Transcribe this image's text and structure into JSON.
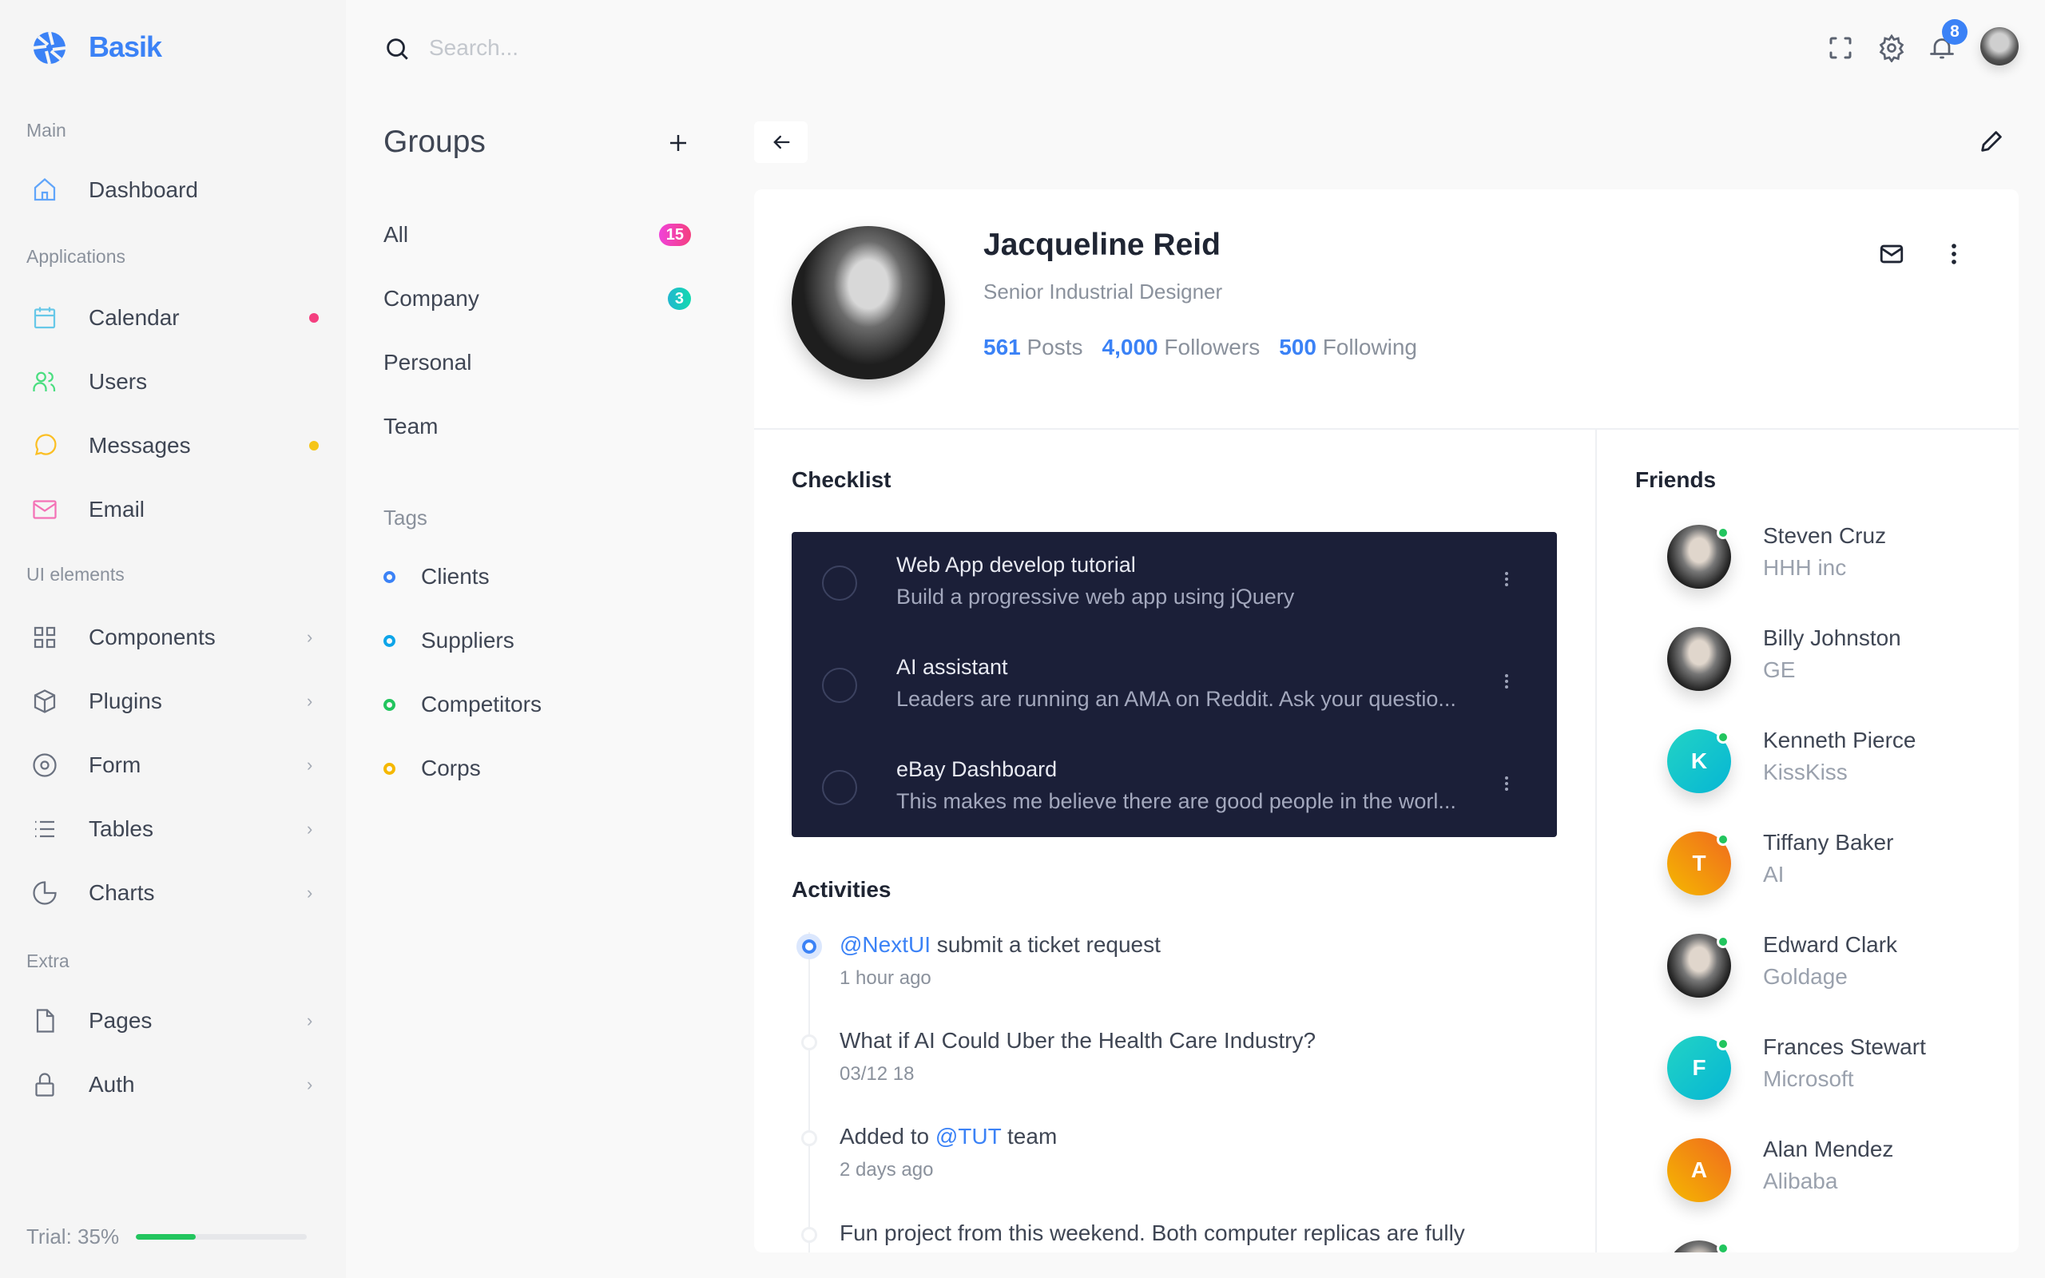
{
  "brand": {
    "name": "Basik",
    "color": "#3b82f6"
  },
  "sidebar": {
    "sections": [
      {
        "label": "Main",
        "items": [
          {
            "label": "Dashboard",
            "icon": "home-icon",
            "color": "#60a5fa"
          }
        ]
      },
      {
        "label": "Applications",
        "items": [
          {
            "label": "Calendar",
            "icon": "calendar-icon",
            "color": "#67c8e8",
            "dot": "#f43f7f"
          },
          {
            "label": "Users",
            "icon": "users-icon",
            "color": "#4ade80"
          },
          {
            "label": "Messages",
            "icon": "message-icon",
            "color": "#fbbf24",
            "dot": "#f5c518"
          },
          {
            "label": "Email",
            "icon": "mail-icon",
            "color": "#f472b6"
          }
        ]
      },
      {
        "label": "UI elements",
        "items": [
          {
            "label": "Components",
            "icon": "grid-icon",
            "chevron": true
          },
          {
            "label": "Plugins",
            "icon": "box-icon",
            "chevron": true
          },
          {
            "label": "Form",
            "icon": "target-icon",
            "chevron": true
          },
          {
            "label": "Tables",
            "icon": "list-icon",
            "chevron": true
          },
          {
            "label": "Charts",
            "icon": "pie-chart-icon",
            "chevron": true
          }
        ]
      },
      {
        "label": "Extra",
        "items": [
          {
            "label": "Pages",
            "icon": "file-icon",
            "chevron": true
          },
          {
            "label": "Auth",
            "icon": "lock-icon",
            "chevron": true
          }
        ]
      }
    ],
    "trial": {
      "label": "Trial: 35%",
      "percent": 35
    }
  },
  "topbar": {
    "search_placeholder": "Search...",
    "notifications": "8"
  },
  "groups": {
    "title": "Groups",
    "items": [
      {
        "label": "All",
        "badge": "15",
        "badge_color": "linear-gradient(90deg,#f043d9,#f43f7f)"
      },
      {
        "label": "Company",
        "badge": "3",
        "badge_color": "linear-gradient(90deg,#22b8cf,#14d9b0)"
      },
      {
        "label": "Personal"
      },
      {
        "label": "Team"
      }
    ],
    "tags_title": "Tags",
    "tags": [
      {
        "label": "Clients",
        "color": "#3b82f6"
      },
      {
        "label": "Suppliers",
        "color": "#0ea5e9"
      },
      {
        "label": "Competitors",
        "color": "#22c55e"
      },
      {
        "label": "Corps",
        "color": "#f5b800"
      }
    ]
  },
  "profile": {
    "name": "Jacqueline Reid",
    "title": "Senior Industrial Designer",
    "posts": "561",
    "posts_label": "Posts",
    "followers": "4,000",
    "followers_label": "Followers",
    "following": "500",
    "following_label": "Following"
  },
  "checklist": {
    "title": "Checklist",
    "items": [
      {
        "title": "Web App develop tutorial",
        "subtitle": "Build a progressive web app using jQuery"
      },
      {
        "title": "AI assistant",
        "subtitle": "Leaders are running an AMA on Reddit. Ask your questio..."
      },
      {
        "title": "eBay Dashboard",
        "subtitle": "This makes me believe there are good people in the worl..."
      }
    ]
  },
  "activities": {
    "title": "Activities",
    "items": [
      {
        "parts": [
          {
            "text": "@NextUI",
            "link": true
          },
          {
            "text": " submit a ticket request"
          }
        ],
        "time": "1 hour ago"
      },
      {
        "parts": [
          {
            "text": "What if AI Could Uber the Health Care Industry?"
          }
        ],
        "time": "03/12 18"
      },
      {
        "parts": [
          {
            "text": "Added to "
          },
          {
            "text": "@TUT",
            "link": true
          },
          {
            "text": " team"
          }
        ],
        "time": "2 days ago"
      },
      {
        "parts": [
          {
            "text": "Fun project from this weekend. Both computer replicas are fully"
          }
        ]
      }
    ]
  },
  "friends": {
    "title": "Friends",
    "items": [
      {
        "name": "Steven Cruz",
        "company": "HHH inc",
        "photo": true,
        "online": true
      },
      {
        "name": "Billy Johnston",
        "company": "GE",
        "photo": true,
        "online": false
      },
      {
        "name": "Kenneth Pierce",
        "company": "KissKiss",
        "initial": "K",
        "color": "linear-gradient(135deg,#22d3c5,#06b6d4)",
        "online": true
      },
      {
        "name": "Tiffany Baker",
        "company": "AI",
        "initial": "T",
        "color": "linear-gradient(45deg,#f5b800,#f06a1e)",
        "online": true
      },
      {
        "name": "Edward Clark",
        "company": "Goldage",
        "photo": true,
        "online": true
      },
      {
        "name": "Frances Stewart",
        "company": "Microsoft",
        "initial": "F",
        "color": "linear-gradient(135deg,#22d3c5,#06b6d4)",
        "online": true
      },
      {
        "name": "Alan Mendez",
        "company": "Alibaba",
        "initial": "A",
        "color": "linear-gradient(45deg,#f5b800,#f06a1e)",
        "online": false
      },
      {
        "photo": true,
        "online": true
      }
    ]
  }
}
